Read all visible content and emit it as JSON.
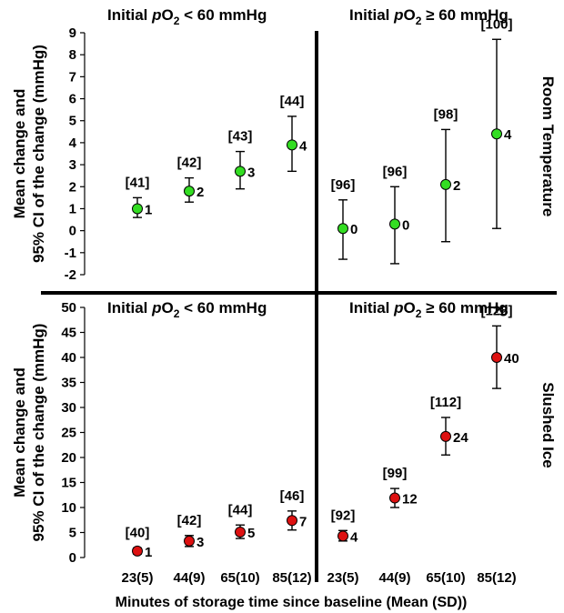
{
  "chart_data": {
    "type": "scatter",
    "xlabel": "Minutes of storage time since baseline (Mean (SD))",
    "x_categories": [
      "23(5)",
      "44(9)",
      "65(10)",
      "85(12)"
    ],
    "colors": {
      "room": "#33dd22",
      "ice": "#dd1111"
    },
    "rows": [
      {
        "label": "Room Temperature",
        "ylabel_lines": [
          "Mean change and",
          "95% CI of the change (mmHg)"
        ],
        "ylim": [
          -2,
          9
        ],
        "yticks": [
          "-2",
          "-1",
          "0",
          "1",
          "2",
          "3",
          "4",
          "5",
          "6",
          "7",
          "8",
          "9"
        ],
        "color_key": "room",
        "panels": [
          {
            "title_prefix": "Initial ",
            "title_italic": "p",
            "title_mid": "O",
            "title_sub": "2",
            "title_suffix": " < 60 mmHg",
            "points": [
              {
                "x": "23(5)",
                "mean": 1.0,
                "lo": 0.6,
                "hi": 1.5,
                "mean_label": "1",
                "n_label": "[41]"
              },
              {
                "x": "44(9)",
                "mean": 1.8,
                "lo": 1.3,
                "hi": 2.4,
                "mean_label": "2",
                "n_label": "[42]"
              },
              {
                "x": "65(10)",
                "mean": 2.7,
                "lo": 1.9,
                "hi": 3.6,
                "mean_label": "3",
                "n_label": "[43]"
              },
              {
                "x": "85(12)",
                "mean": 3.9,
                "lo": 2.7,
                "hi": 5.2,
                "mean_label": "4",
                "n_label": "[44]"
              }
            ]
          },
          {
            "title_prefix": "Initial ",
            "title_italic": "p",
            "title_mid": "O",
            "title_sub": "2",
            "title_suffix": " ≥ 60 mmHg",
            "points": [
              {
                "x": "23(5)",
                "mean": 0.1,
                "lo": -1.3,
                "hi": 1.4,
                "mean_label": "0",
                "n_label": "[96]"
              },
              {
                "x": "44(9)",
                "mean": 0.3,
                "lo": -1.5,
                "hi": 2.0,
                "mean_label": "0",
                "n_label": "[96]"
              },
              {
                "x": "65(10)",
                "mean": 2.1,
                "lo": -0.5,
                "hi": 4.6,
                "mean_label": "2",
                "n_label": "[98]"
              },
              {
                "x": "85(12)",
                "mean": 4.4,
                "lo": 0.1,
                "hi": 8.7,
                "mean_label": "4",
                "n_label": "[100]"
              }
            ]
          }
        ]
      },
      {
        "label": "Slushed Ice",
        "ylabel_lines": [
          "Mean change and",
          "95% CI of the change (mmHg)"
        ],
        "ylim": [
          0,
          50
        ],
        "yticks": [
          "0",
          "5",
          "10",
          "15",
          "20",
          "25",
          "30",
          "35",
          "40",
          "45",
          "50"
        ],
        "color_key": "ice",
        "panels": [
          {
            "title_prefix": "Initial ",
            "title_italic": "p",
            "title_mid": "O",
            "title_sub": "2",
            "title_suffix": " < 60 mmHg",
            "points": [
              {
                "x": "23(5)",
                "mean": 1.3,
                "lo": 0.7,
                "hi": 1.9,
                "mean_label": "1",
                "n_label": "[40]"
              },
              {
                "x": "44(9)",
                "mean": 3.3,
                "lo": 2.2,
                "hi": 4.4,
                "mean_label": "3",
                "n_label": "[42]"
              },
              {
                "x": "65(10)",
                "mean": 5.1,
                "lo": 3.8,
                "hi": 6.5,
                "mean_label": "5",
                "n_label": "[44]"
              },
              {
                "x": "85(12)",
                "mean": 7.4,
                "lo": 5.5,
                "hi": 9.3,
                "mean_label": "7",
                "n_label": "[46]"
              }
            ]
          },
          {
            "title_prefix": "Initial ",
            "title_italic": "p",
            "title_mid": "O",
            "title_sub": "2",
            "title_suffix": " ≥ 60 mmHg",
            "points": [
              {
                "x": "23(5)",
                "mean": 4.3,
                "lo": 3.3,
                "hi": 5.4,
                "mean_label": "4",
                "n_label": "[92]"
              },
              {
                "x": "44(9)",
                "mean": 11.9,
                "lo": 10.0,
                "hi": 13.8,
                "mean_label": "12",
                "n_label": "[99]"
              },
              {
                "x": "65(10)",
                "mean": 24.2,
                "lo": 20.5,
                "hi": 28.0,
                "mean_label": "24",
                "n_label": "[112]"
              },
              {
                "x": "85(12)",
                "mean": 40.0,
                "lo": 33.8,
                "hi": 46.3,
                "mean_label": "40",
                "n_label": "[128]"
              }
            ]
          }
        ]
      }
    ]
  }
}
